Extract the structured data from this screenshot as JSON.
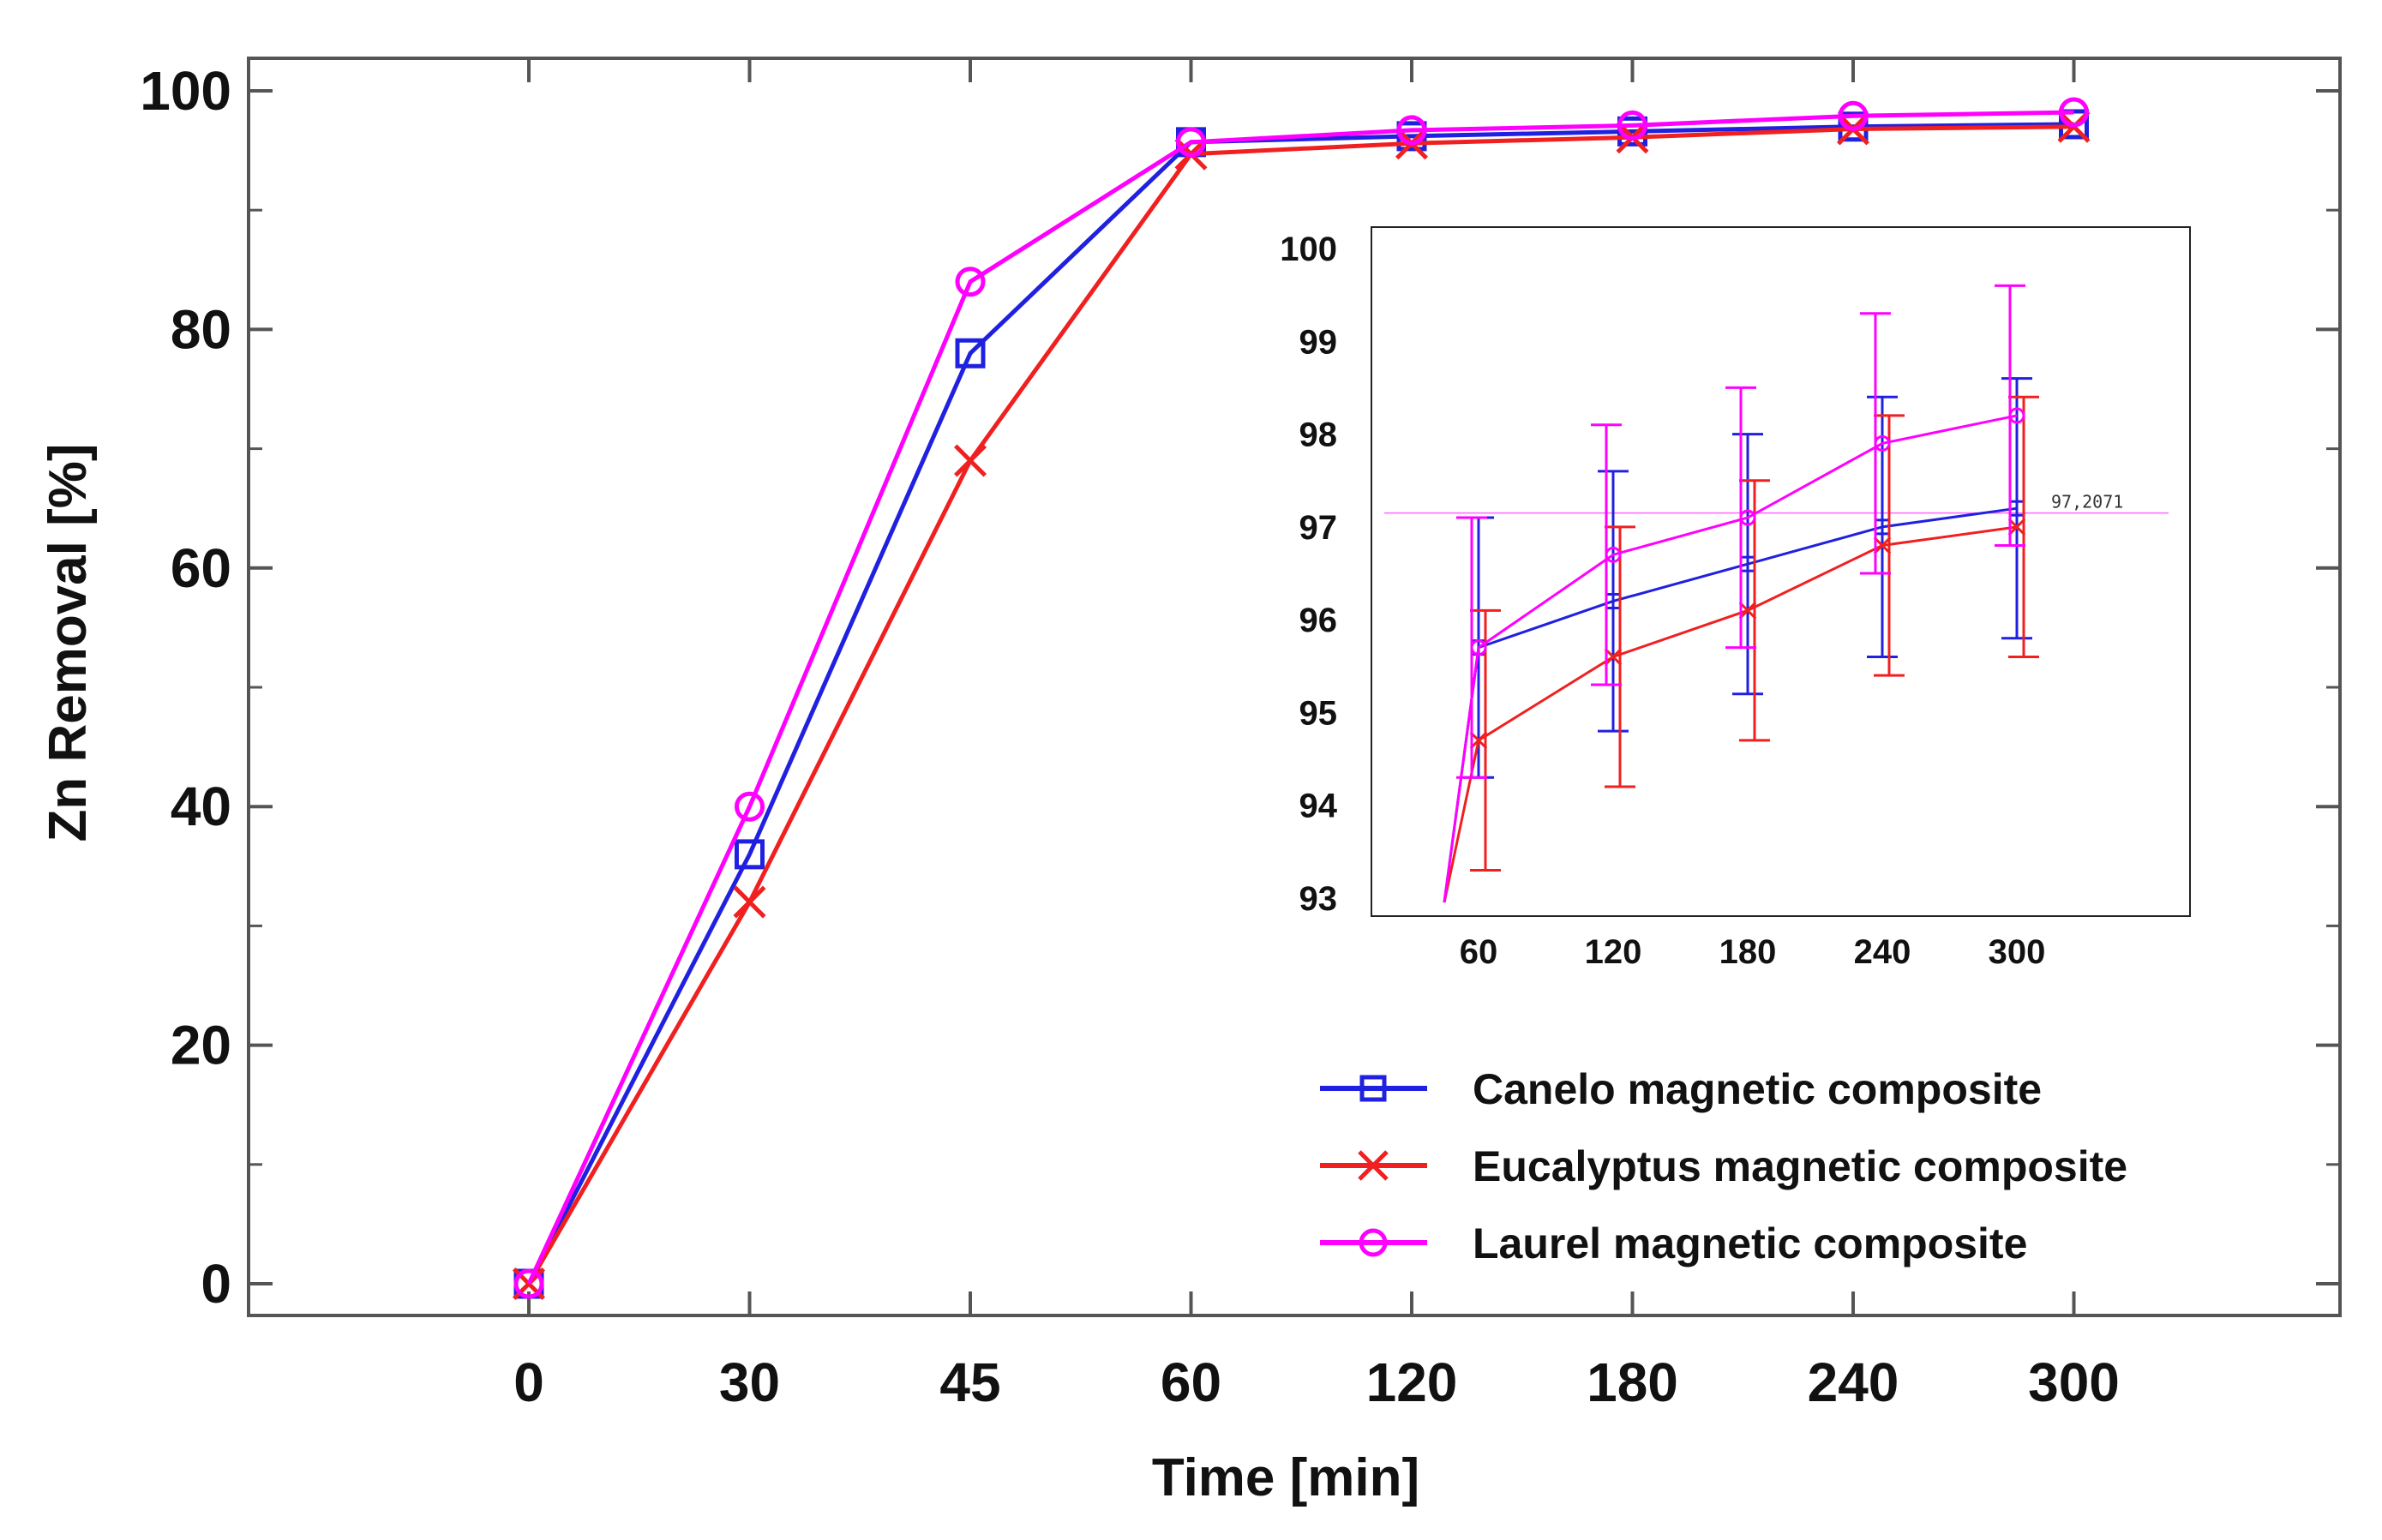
{
  "chart_data": [
    {
      "id": "main",
      "type": "line",
      "title": "",
      "xlabel": "Time [min]",
      "ylabel": "Zn Removal [%]",
      "categories": [
        "0",
        "30",
        "45",
        "60",
        "120",
        "180",
        "240",
        "300"
      ],
      "ylim": [
        0,
        100
      ],
      "yticks": [
        0,
        20,
        40,
        60,
        80,
        100
      ],
      "grid": false,
      "legend_position": "bottom-right",
      "series": [
        {
          "name": "Canelo magnetic composite",
          "color": "#2020e0",
          "marker": "square",
          "values": [
            0,
            36,
            78,
            95.7,
            96.2,
            96.6,
            97.0,
            97.2
          ]
        },
        {
          "name": "Eucalyptus magnetic composite",
          "color": "#f02020",
          "marker": "x",
          "values": [
            0,
            32,
            69,
            94.7,
            95.6,
            96.1,
            96.8,
            97.0
          ]
        },
        {
          "name": "Laurel magnetic composite",
          "color": "#ff00ff",
          "marker": "circle",
          "values": [
            0,
            40,
            84,
            95.7,
            96.7,
            97.1,
            97.9,
            98.2
          ]
        }
      ]
    },
    {
      "id": "inset",
      "type": "line",
      "title": "",
      "xlabel": "",
      "ylabel": "",
      "categories": [
        "60",
        "120",
        "180",
        "240",
        "300"
      ],
      "ylim": [
        93,
        100
      ],
      "yticks": [
        93,
        94,
        95,
        96,
        97,
        98,
        99,
        100
      ],
      "grid": false,
      "error_bars": true,
      "annotation": {
        "text": "97,2071",
        "y": 97.15
      },
      "series": [
        {
          "name": "Canelo magnetic composite",
          "color": "#2020e0",
          "marker": "square",
          "values": [
            95.7,
            96.2,
            96.6,
            97.0,
            97.2
          ],
          "error": [
            1.4,
            1.4,
            1.4,
            1.4,
            1.4
          ]
        },
        {
          "name": "Eucalyptus magnetic composite",
          "color": "#f02020",
          "marker": "x",
          "values": [
            94.7,
            95.6,
            96.1,
            96.8,
            97.0
          ],
          "error": [
            1.4,
            1.4,
            1.4,
            1.4,
            1.4
          ]
        },
        {
          "name": "Laurel magnetic composite",
          "color": "#ff00ff",
          "marker": "circle",
          "values": [
            95.7,
            96.7,
            97.1,
            97.9,
            98.2
          ],
          "error": [
            1.4,
            1.4,
            1.4,
            1.4,
            1.4
          ]
        }
      ]
    }
  ]
}
